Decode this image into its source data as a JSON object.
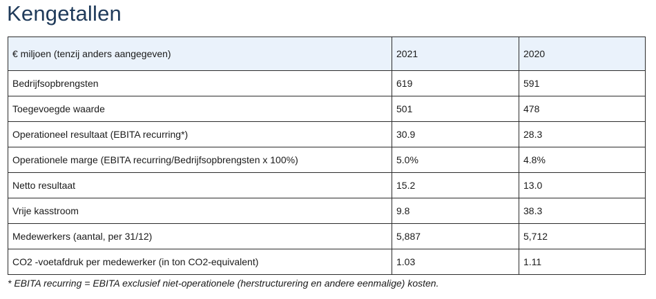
{
  "title": "Kengetallen",
  "table": {
    "header": {
      "label": "€ miljoen (tenzij anders aangegeven)",
      "col_2021": "2021",
      "col_2020": "2020"
    },
    "rows": [
      {
        "label": "Bedrijfsopbrengsten",
        "v2021": "619",
        "v2020": "591"
      },
      {
        "label": "Toegevoegde waarde",
        "v2021": "501",
        "v2020": "478"
      },
      {
        "label": "Operationeel resultaat (EBITA recurring*)",
        "v2021": "30.9",
        "v2020": "28.3"
      },
      {
        "label": "Operationele marge (EBITA recurring/Bedrijfsopbrengsten x 100%)",
        "v2021": "5.0%",
        "v2020": "4.8%"
      },
      {
        "label": "Netto resultaat",
        "v2021": "15.2",
        "v2020": "13.0"
      },
      {
        "label": "Vrije kasstroom",
        "v2021": "9.8",
        "v2020": "38.3"
      },
      {
        "label": "Medewerkers (aantal, per 31/12)",
        "v2021": "5,887",
        "v2020": "5,712"
      },
      {
        "label": "CO2 -voetafdruk per medewerker (in ton CO2-equivalent)",
        "v2021": "1.03",
        "v2020": "1.11"
      }
    ]
  },
  "footnote": "* EBITA recurring = EBITA exclusief niet-operationele (herstructurering en andere eenmalige) kosten."
}
